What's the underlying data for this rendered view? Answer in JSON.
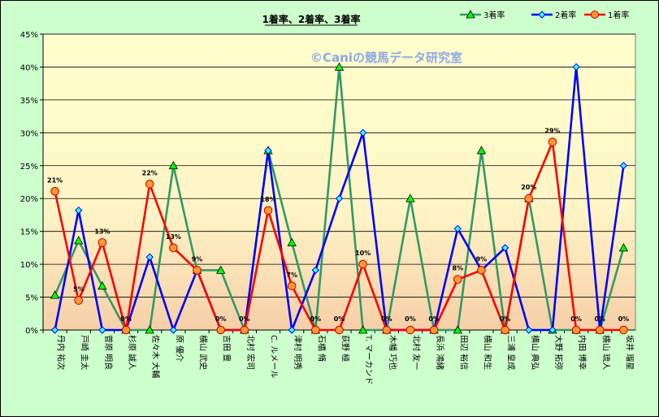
{
  "chart_data": {
    "type": "line",
    "title": "1着率、2着率、3着率",
    "watermark": "©Caniの競馬データ研究室",
    "ylim": [
      0,
      45
    ],
    "yticks": [
      "0%",
      "5%",
      "10%",
      "15%",
      "20%",
      "25%",
      "30%",
      "35%",
      "40%",
      "45%"
    ],
    "grid": true,
    "legend_position": "top-right",
    "categories": [
      "丹内 祐次",
      "戸崎 圭太",
      "菅原 明良",
      "杉原 誠人",
      "佐々木 大輔",
      "原 優介",
      "横山 武史",
      "吉田 豊",
      "北村 宏司",
      "C. ルメール",
      "津村 明秀",
      "石橋 脩",
      "荻野 極",
      "T. マーカンド",
      "木幡 巧也",
      "北村 友一",
      "長浜 鴻緒",
      "田辺 裕信",
      "横山 和生",
      "三浦 皇成",
      "横山 典弘",
      "大野 拓弥",
      "内田 博幸",
      "横山 琉人",
      "坂井 瑠星"
    ],
    "series": [
      {
        "name": "3着率",
        "color": "#339966",
        "marker": "triangle",
        "values": [
          5.3,
          13.6,
          6.7,
          0,
          0,
          25,
          9.1,
          9.1,
          0,
          27.3,
          13.3,
          0,
          40,
          0,
          0,
          20,
          0,
          0,
          27.3,
          0,
          20,
          0,
          0,
          0,
          12.5
        ]
      },
      {
        "name": "2着率",
        "color": "#0000ff",
        "marker": "diamond",
        "values": [
          0,
          18.2,
          0,
          0,
          11.1,
          0,
          9.1,
          0,
          0,
          27.3,
          0,
          9.1,
          20,
          30,
          0,
          0,
          0,
          15.4,
          9.1,
          12.5,
          0,
          0,
          40,
          0,
          25
        ]
      },
      {
        "name": "1着率",
        "color": "#ff0000",
        "marker": "circle",
        "values": [
          21.1,
          4.5,
          13.3,
          0,
          22.2,
          12.5,
          9.1,
          0,
          0,
          18.2,
          6.7,
          0,
          0,
          10,
          0,
          0,
          0,
          7.7,
          9.1,
          0,
          20,
          28.6,
          0,
          0,
          0
        ],
        "labels": [
          "21%",
          "5%",
          "13%",
          "0%",
          "22%",
          "13%",
          "9%",
          "0%",
          "0%",
          "18%",
          "7%",
          "0%",
          "0%",
          "10%",
          "0%",
          "0%",
          "0%",
          "8%",
          "9%",
          "0%",
          "20%",
          "29%",
          "0%",
          "0%",
          "0%"
        ]
      }
    ]
  }
}
